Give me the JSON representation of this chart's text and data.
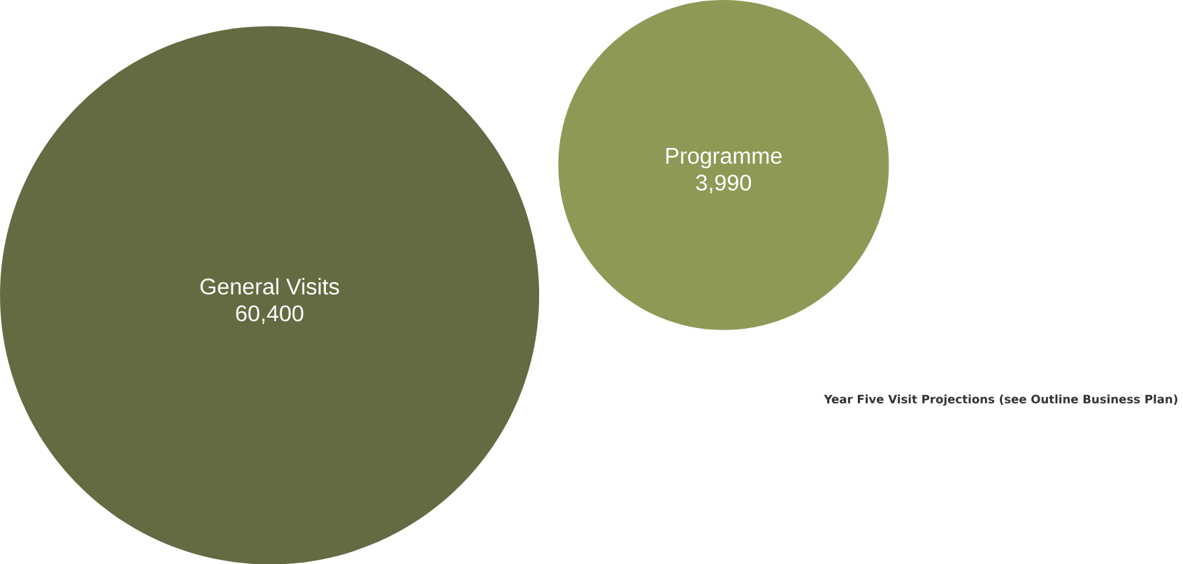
{
  "chart_data": {
    "type": "other",
    "categories": [
      "General Visits",
      "Programme"
    ],
    "values": [
      60400,
      3990
    ],
    "value_labels": [
      "60,400",
      "3,990"
    ],
    "colors": [
      "#646b42",
      "#8d9a56"
    ],
    "annotations": [
      "Year Five Visit Projections (see Outline Business Plan)"
    ]
  }
}
